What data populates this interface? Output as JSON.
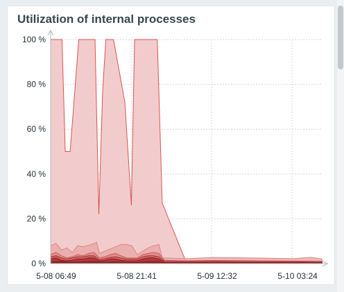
{
  "widget": {
    "title": "Utilization of internal processes"
  },
  "chart_data": {
    "type": "area",
    "title": "Utilization of internal processes",
    "xlabel": "",
    "ylabel": "",
    "ylim": [
      0,
      100
    ],
    "y_ticks": [
      "0 %",
      "20 %",
      "40 %",
      "60 %",
      "80 %",
      "100 %"
    ],
    "x_ticks": [
      "5-08 06:49",
      "5-08 21:41",
      "5-09 12:32",
      "5-10 03:24"
    ],
    "x_tick_hours": [
      0,
      14.87,
      29.72,
      44.58
    ],
    "x_range_hours": [
      0,
      50.2
    ],
    "grid": true,
    "colors": {
      "main_fill": "#f2cccc",
      "main_line": "#d9534f",
      "series_fill": [
        "#eaa8a8",
        "#de8585",
        "#c85a5a",
        "#a83232",
        "#8a1e1e"
      ],
      "axis": "#b0b8bd",
      "grid": "#cfd6da"
    },
    "series": [
      {
        "x": [
          0,
          2.1,
          2.7,
          3.6,
          5.2,
          8.2,
          8.9,
          9.6,
          10.2,
          11.6,
          13.7,
          14.9,
          15.5,
          16.5,
          17.5,
          19.7,
          20.6,
          25.0,
          25.6,
          26.2,
          27.5,
          50.2
        ],
        "y": [
          100,
          100,
          50,
          50,
          100,
          100,
          22,
          77,
          100,
          100,
          72,
          26,
          100,
          100,
          100,
          100,
          27,
          0.8,
          0.8,
          0.8,
          0.8,
          0.5
        ]
      },
      {
        "x": [
          0,
          1.0,
          2.0,
          3.0,
          4.0,
          5.0,
          6.0,
          7.5,
          8.5,
          9.0,
          10.0,
          11.0,
          12.0,
          13.0,
          14.0,
          15.0,
          16.0,
          17.0,
          18.0,
          19.0,
          20.0,
          20.6,
          21.0,
          25.0,
          30.0,
          35.0,
          40.0,
          45.0,
          48.0,
          50.2
        ],
        "y": [
          8,
          9,
          6,
          7,
          5,
          8,
          7.5,
          8.5,
          9.5,
          4.5,
          5.5,
          6.5,
          7.5,
          8.5,
          8.5,
          8,
          4,
          5.5,
          7,
          8,
          8.5,
          2.5,
          2.5,
          2.2,
          2.7,
          2.6,
          2.4,
          2.2,
          2.8,
          2.0
        ]
      },
      {
        "x": [
          0,
          1.0,
          2.0,
          3.0,
          4.0,
          5.0,
          6.0,
          7.0,
          8.0,
          9.0,
          10.0,
          11.0,
          12.0,
          13.0,
          14.0,
          15.0,
          16.0,
          17.0,
          18.0,
          19.0,
          20.0,
          21.0,
          25.0,
          30.0,
          35.0,
          40.0,
          45.0,
          50.2
        ],
        "y": [
          4,
          5,
          3.5,
          2.5,
          3,
          4,
          3.5,
          4.5,
          5,
          2.5,
          3,
          4,
          4.5,
          3.5,
          2.5,
          2.5,
          2.5,
          4,
          4.5,
          5,
          4.5,
          1.5,
          1.2,
          1.4,
          1.3,
          1.2,
          1.1,
          1.0
        ]
      },
      {
        "x": [
          0,
          1.0,
          2.0,
          3.0,
          4.0,
          5.0,
          6.0,
          7.0,
          8.0,
          9.0,
          10.0,
          11.0,
          12.0,
          13.0,
          14.0,
          15.0,
          16.0,
          17.0,
          18.0,
          19.0,
          20.0,
          21.0,
          25.0,
          30.0,
          35.0,
          40.0,
          45.0,
          50.2
        ],
        "y": [
          3,
          3.5,
          2.5,
          2,
          2.5,
          3,
          3,
          3.5,
          3.5,
          1.8,
          2.2,
          2.8,
          3,
          2.5,
          2,
          2,
          2,
          3,
          3.5,
          3.5,
          3,
          1,
          0.9,
          1.0,
          0.9,
          0.8,
          0.8,
          0.7
        ]
      },
      {
        "x": [
          0,
          1.0,
          2.0,
          3.0,
          4.0,
          5.0,
          6.0,
          7.0,
          8.0,
          9.0,
          10.0,
          11.0,
          12.0,
          13.0,
          14.0,
          15.0,
          16.0,
          17.0,
          18.0,
          19.0,
          20.0,
          21.0,
          25.0,
          30.0,
          35.0,
          40.0,
          45.0,
          50.2
        ],
        "y": [
          2,
          2.5,
          1.5,
          1.2,
          1.5,
          2,
          2,
          2.5,
          2.5,
          1.2,
          1.5,
          2,
          2,
          1.5,
          1.2,
          1.2,
          1.2,
          2,
          2.5,
          2.5,
          2,
          0.6,
          0.5,
          0.6,
          0.5,
          0.5,
          0.5,
          0.4
        ]
      },
      {
        "x": [
          0,
          2.0,
          4.0,
          6.0,
          8.0,
          10.0,
          12.0,
          14.0,
          16.0,
          18.0,
          20.0,
          21.0,
          25.0,
          30.0,
          35.0,
          40.0,
          45.0,
          50.2
        ],
        "y": [
          0.8,
          1.0,
          0.6,
          0.8,
          1.0,
          0.6,
          0.8,
          0.6,
          0.6,
          0.9,
          0.9,
          0.3,
          0.3,
          0.3,
          0.3,
          0.3,
          0.3,
          0.3
        ]
      }
    ]
  }
}
